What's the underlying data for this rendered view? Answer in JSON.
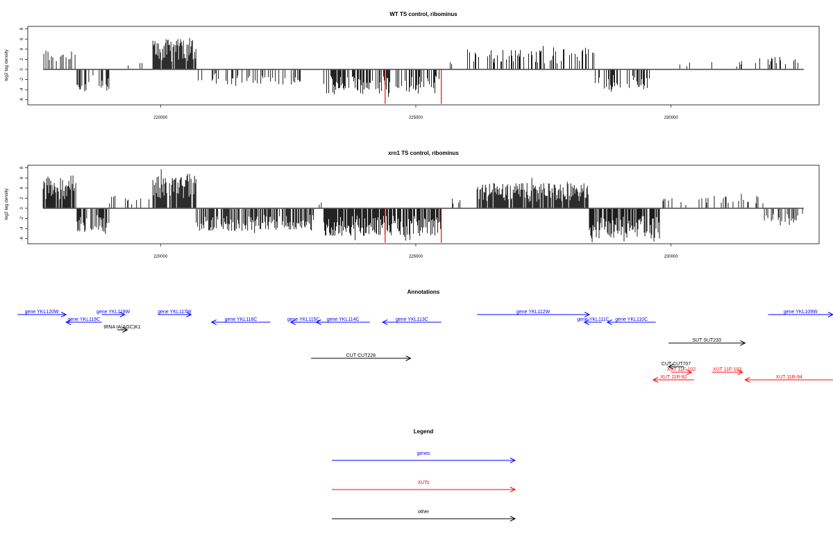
{
  "colors": {
    "gene": "#0000ff",
    "xut": "#ff0000",
    "other": "#000000",
    "bar": "#000000",
    "highlight": "#ff0000",
    "frame": "#000000",
    "baseline": "#555555"
  },
  "annotations_title": "Annotations",
  "legend": {
    "title": "Legend",
    "items": [
      {
        "label": "genes",
        "kind": "gene"
      },
      {
        "label": "XUTs",
        "kind": "xut"
      },
      {
        "label": "other",
        "kind": "other"
      }
    ]
  },
  "chart_data": [
    {
      "type": "bar",
      "title": "WT TS control, ribominus",
      "xlabel": "",
      "ylabel": "log2 tag density",
      "ylim": [
        -7,
        8.5
      ],
      "yticks": [
        -6,
        -4,
        -2,
        0,
        2,
        4,
        6,
        8
      ],
      "xlim": [
        217400,
        232900
      ],
      "xticks": [
        220000,
        225000,
        230000
      ],
      "x_range": [
        217700,
        232600
      ],
      "highlight_x": [
        224400,
        225500
      ],
      "highlight_value": -6.8,
      "grid": false,
      "segments": [
        {
          "from": 217700,
          "to": 218350,
          "sign": 1,
          "amp": 4.0,
          "density": 0.35
        },
        {
          "from": 218350,
          "to": 219000,
          "sign": -1,
          "amp": 4.5,
          "density": 0.4
        },
        {
          "from": 219000,
          "to": 219850,
          "sign": 1,
          "amp": 2.0,
          "density": 0.05
        },
        {
          "from": 219850,
          "to": 220700,
          "sign": 1,
          "amp": 6.0,
          "density": 0.9
        },
        {
          "from": 220700,
          "to": 222800,
          "sign": -1,
          "amp": 3.0,
          "density": 0.3
        },
        {
          "from": 222800,
          "to": 223200,
          "sign": 1,
          "amp": 1.5,
          "density": 0.05
        },
        {
          "from": 223200,
          "to": 225500,
          "sign": -1,
          "amp": 5.0,
          "density": 0.55
        },
        {
          "from": 225500,
          "to": 226000,
          "sign": 1,
          "amp": 1.5,
          "density": 0.05
        },
        {
          "from": 226000,
          "to": 228500,
          "sign": 1,
          "amp": 4.0,
          "density": 0.3
        },
        {
          "from": 228500,
          "to": 229600,
          "sign": -1,
          "amp": 4.0,
          "density": 0.4
        },
        {
          "from": 229600,
          "to": 231600,
          "sign": 1,
          "amp": 1.5,
          "density": 0.04
        },
        {
          "from": 231600,
          "to": 232600,
          "sign": 1,
          "amp": 2.5,
          "density": 0.15
        }
      ]
    },
    {
      "type": "bar",
      "title": "xrn1 TS control, ribominus",
      "xlabel": "",
      "ylabel": "log2 tag density",
      "ylim": [
        -7,
        8.5
      ],
      "yticks": [
        -6,
        -4,
        -2,
        0,
        2,
        4,
        6,
        8
      ],
      "xlim": [
        217400,
        232900
      ],
      "xticks": [
        220000,
        225000,
        230000
      ],
      "x_range": [
        217700,
        232600
      ],
      "highlight_x": [
        224400,
        225500
      ],
      "highlight_value": -6.8,
      "grid": false,
      "segments": [
        {
          "from": 217700,
          "to": 218350,
          "sign": 1,
          "amp": 6.5,
          "density": 0.9
        },
        {
          "from": 218350,
          "to": 219000,
          "sign": -1,
          "amp": 5.0,
          "density": 0.6
        },
        {
          "from": 219000,
          "to": 219850,
          "sign": 1,
          "amp": 2.5,
          "density": 0.12
        },
        {
          "from": 219850,
          "to": 220700,
          "sign": 1,
          "amp": 6.5,
          "density": 0.9
        },
        {
          "from": 220700,
          "to": 223000,
          "sign": -1,
          "amp": 4.5,
          "density": 0.7
        },
        {
          "from": 223000,
          "to": 223200,
          "sign": 1,
          "amp": 1.5,
          "density": 0.1
        },
        {
          "from": 223200,
          "to": 225500,
          "sign": -1,
          "amp": 5.5,
          "density": 0.8
        },
        {
          "from": 225500,
          "to": 226200,
          "sign": 1,
          "amp": 2.0,
          "density": 0.1
        },
        {
          "from": 226200,
          "to": 228400,
          "sign": 1,
          "amp": 5.0,
          "density": 0.9
        },
        {
          "from": 228400,
          "to": 229800,
          "sign": -1,
          "amp": 6.0,
          "density": 0.8
        },
        {
          "from": 229800,
          "to": 231800,
          "sign": 1,
          "amp": 2.5,
          "density": 0.2
        },
        {
          "from": 231800,
          "to": 232600,
          "sign": -1,
          "amp": 3.0,
          "density": 0.35
        }
      ]
    }
  ],
  "features": [
    {
      "label": "gene YKL120W",
      "kind": "gene",
      "start": 217200,
      "end": 218150,
      "dir": "right",
      "row": 0
    },
    {
      "label": "gene YKL118W",
      "kind": "gene",
      "start": 218850,
      "end": 219300,
      "dir": "right",
      "row": 0
    },
    {
      "label": "gene YKL117W",
      "kind": "gene",
      "start": 219950,
      "end": 220600,
      "dir": "right",
      "row": 0
    },
    {
      "label": "gene YKL119C",
      "kind": "gene",
      "start": 218150,
      "end": 218850,
      "dir": "left",
      "row": 1
    },
    {
      "label": "tRNA tA(AGC)K1",
      "kind": "other",
      "start": 219150,
      "end": 219350,
      "dir": "right",
      "row": 2
    },
    {
      "label": "gene YKL116C",
      "kind": "gene",
      "start": 221000,
      "end": 222150,
      "dir": "left",
      "row": 1
    },
    {
      "label": "gene YKL115C",
      "kind": "gene",
      "start": 222550,
      "end": 223050,
      "dir": "left",
      "row": 1
    },
    {
      "label": "gene YKL114C",
      "kind": "gene",
      "start": 223050,
      "end": 224100,
      "dir": "left",
      "row": 1
    },
    {
      "label": "gene YKL113C",
      "kind": "gene",
      "start": 224350,
      "end": 225500,
      "dir": "left",
      "row": 1
    },
    {
      "label": "gene YKL112W",
      "kind": "gene",
      "start": 226200,
      "end": 228400,
      "dir": "right",
      "row": 0
    },
    {
      "label": "gene YKL111C",
      "kind": "gene",
      "start": 228300,
      "end": 228650,
      "dir": "left",
      "row": 1
    },
    {
      "label": "gene YKL110C",
      "kind": "gene",
      "start": 228750,
      "end": 229700,
      "dir": "left",
      "row": 1
    },
    {
      "label": "gene YKL109W",
      "kind": "gene",
      "start": 231900,
      "end": 233200,
      "dir": "right",
      "row": 0
    },
    {
      "label": "SUT SUT233",
      "kind": "other",
      "start": 229950,
      "end": 231450,
      "dir": "right",
      "row": 3
    },
    {
      "label": "CUT CUT228",
      "kind": "other",
      "start": 222950,
      "end": 224900,
      "dir": "right",
      "row": 4
    },
    {
      "label": "CUT CUT707",
      "kind": "other",
      "start": 229950,
      "end": 230250,
      "dir": "left",
      "row": 5
    },
    {
      "label": "XUT 11F-102",
      "kind": "xut",
      "start": 230000,
      "end": 230400,
      "dir": "right",
      "row": 6
    },
    {
      "label": "XUT 11F-103",
      "kind": "xut",
      "start": 230800,
      "end": 231400,
      "dir": "right",
      "row": 6
    },
    {
      "label": "XUT 11R-92",
      "kind": "xut",
      "start": 229650,
      "end": 230450,
      "dir": "left",
      "row": 7
    },
    {
      "label": "XUT 11R-94",
      "kind": "xut",
      "start": 231450,
      "end": 233200,
      "dir": "left",
      "row": 7
    }
  ]
}
